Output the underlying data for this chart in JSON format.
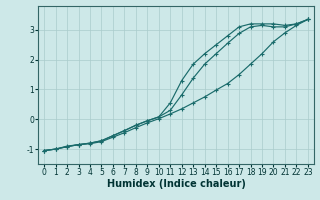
{
  "background_color": "#cde8e8",
  "grid_color": "#aacccc",
  "line_color": "#1a6b6b",
  "xlabel": "Humidex (Indice chaleur)",
  "xlim": [
    -0.5,
    23.5
  ],
  "ylim": [
    -1.5,
    3.8
  ],
  "yticks": [
    -1,
    0,
    1,
    2,
    3
  ],
  "xticks": [
    0,
    1,
    2,
    3,
    4,
    5,
    6,
    7,
    8,
    9,
    10,
    11,
    12,
    13,
    14,
    15,
    16,
    17,
    18,
    19,
    20,
    21,
    22,
    23
  ],
  "series1_x": [
    0,
    1,
    2,
    3,
    4,
    5,
    6,
    7,
    8,
    9,
    10,
    11,
    12,
    13,
    14,
    15,
    16,
    17,
    18,
    19,
    20,
    21,
    22,
    23
  ],
  "series1_y": [
    -1.05,
    -1.0,
    -0.9,
    -0.85,
    -0.82,
    -0.75,
    -0.6,
    -0.45,
    -0.28,
    -0.12,
    0.02,
    0.18,
    0.35,
    0.55,
    0.75,
    0.98,
    1.2,
    1.5,
    1.85,
    2.2,
    2.6,
    2.9,
    3.15,
    3.35
  ],
  "series2_x": [
    0,
    1,
    2,
    3,
    4,
    5,
    6,
    7,
    8,
    9,
    10,
    11,
    12,
    13,
    14,
    15,
    16,
    17,
    18,
    19,
    20,
    21,
    22,
    23
  ],
  "series2_y": [
    -1.05,
    -1.0,
    -0.92,
    -0.85,
    -0.8,
    -0.72,
    -0.55,
    -0.38,
    -0.2,
    -0.05,
    0.08,
    0.55,
    1.3,
    1.85,
    2.2,
    2.5,
    2.8,
    3.1,
    3.2,
    3.2,
    3.2,
    3.15,
    3.2,
    3.35
  ],
  "series3_x": [
    0,
    1,
    2,
    3,
    4,
    5,
    6,
    7,
    8,
    9,
    10,
    11,
    12,
    13,
    14,
    15,
    16,
    17,
    18,
    19,
    20,
    21,
    22,
    23
  ],
  "series3_y": [
    -1.05,
    -1.0,
    -0.92,
    -0.85,
    -0.8,
    -0.72,
    -0.55,
    -0.38,
    -0.2,
    -0.05,
    0.08,
    0.3,
    0.82,
    1.38,
    1.85,
    2.2,
    2.55,
    2.88,
    3.1,
    3.15,
    3.1,
    3.1,
    3.2,
    3.35
  ],
  "tick_fontsize": 5.5,
  "xlabel_fontsize": 7,
  "tick_color": "#003333",
  "spine_color": "#336666"
}
